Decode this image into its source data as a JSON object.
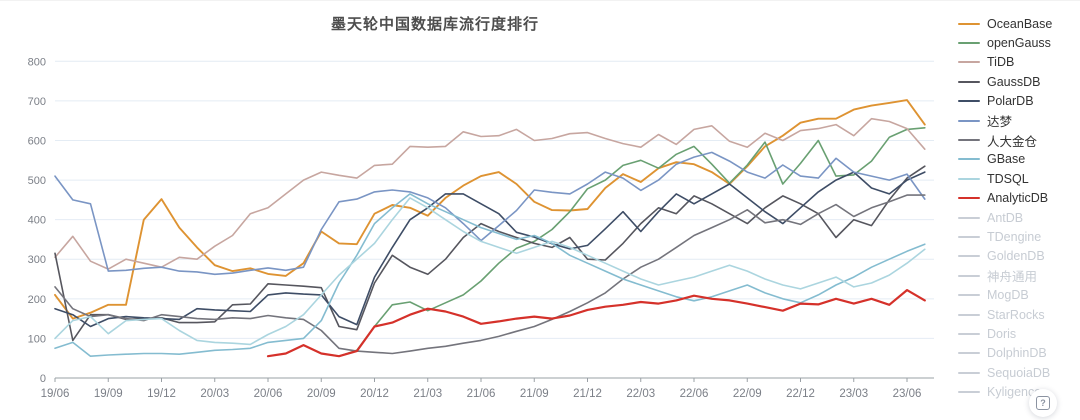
{
  "chart_data": {
    "type": "line",
    "title": "墨天轮中国数据库流行度排行",
    "xlabel": "",
    "ylabel": "",
    "ylim": [
      0,
      800
    ],
    "y_ticks": [
      0,
      100,
      200,
      300,
      400,
      500,
      600,
      700,
      800
    ],
    "grid": true,
    "legend_position": "right",
    "x_tick_labels": [
      "19/06",
      "19/09",
      "19/12",
      "20/03",
      "20/06",
      "20/09",
      "20/12",
      "21/03",
      "21/06",
      "21/09",
      "21/12",
      "22/03",
      "22/06",
      "22/09",
      "22/12",
      "23/03",
      "23/06"
    ],
    "x": [
      "19/06",
      "19/07",
      "19/08",
      "19/09",
      "19/10",
      "19/11",
      "19/12",
      "20/01",
      "20/02",
      "20/03",
      "20/04",
      "20/05",
      "20/06",
      "20/07",
      "20/08",
      "20/09",
      "20/10",
      "20/11",
      "20/12",
      "21/01",
      "21/02",
      "21/03",
      "21/04",
      "21/05",
      "21/06",
      "21/07",
      "21/08",
      "21/09",
      "21/10",
      "21/11",
      "21/12",
      "22/01",
      "22/02",
      "22/03",
      "22/04",
      "22/05",
      "22/06",
      "22/07",
      "22/08",
      "22/09",
      "22/10",
      "22/11",
      "22/12",
      "23/01",
      "23/02",
      "23/03",
      "23/04",
      "23/05",
      "23/06",
      "23/07"
    ],
    "series": [
      {
        "name": "OceanBase",
        "color": "#de9332",
        "values": [
          210,
          150,
          165,
          185,
          185,
          400,
          452,
          380,
          330,
          285,
          270,
          277,
          263,
          258,
          290,
          370,
          340,
          338,
          415,
          437,
          430,
          410,
          455,
          486,
          510,
          520,
          490,
          445,
          424,
          423,
          427,
          480,
          515,
          495,
          530,
          545,
          540,
          520,
          490,
          535,
          585,
          612,
          645,
          655,
          655,
          678,
          688,
          695,
          702,
          640
        ]
      },
      {
        "name": "openGauss",
        "color": "#69a072",
        "values": [
          null,
          null,
          null,
          null,
          null,
          null,
          null,
          null,
          null,
          null,
          null,
          null,
          null,
          null,
          null,
          62,
          55,
          70,
          130,
          185,
          192,
          170,
          190,
          210,
          245,
          290,
          328,
          345,
          375,
          420,
          478,
          500,
          537,
          550,
          530,
          565,
          585,
          540,
          492,
          538,
          596,
          490,
          542,
          600,
          510,
          513,
          548,
          608,
          628,
          632
        ]
      },
      {
        "name": "TiDB",
        "color": "#c7a6a0",
        "values": [
          305,
          358,
          295,
          275,
          300,
          290,
          280,
          305,
          300,
          333,
          360,
          415,
          430,
          465,
          500,
          520,
          512,
          505,
          537,
          540,
          585,
          583,
          585,
          622,
          610,
          612,
          628,
          600,
          605,
          617,
          620,
          605,
          592,
          583,
          615,
          590,
          628,
          637,
          598,
          583,
          618,
          600,
          625,
          630,
          640,
          612,
          655,
          648,
          630,
          578
        ]
      },
      {
        "name": "GaussDB",
        "color": "#56565e",
        "values": [
          315,
          95,
          160,
          160,
          148,
          150,
          152,
          140,
          140,
          142,
          185,
          187,
          238,
          235,
          232,
          228,
          130,
          122,
          240,
          310,
          280,
          262,
          300,
          355,
          390,
          370,
          355,
          340,
          330,
          355,
          300,
          298,
          340,
          390,
          430,
          415,
          460,
          440,
          415,
          390,
          430,
          460,
          440,
          415,
          355,
          400,
          385,
          450,
          505,
          535
        ]
      },
      {
        "name": "PolarDB",
        "color": "#3e4d66",
        "values": [
          175,
          160,
          130,
          150,
          155,
          152,
          150,
          148,
          175,
          172,
          170,
          168,
          210,
          215,
          212,
          210,
          155,
          135,
          255,
          330,
          400,
          430,
          465,
          465,
          440,
          415,
          368,
          356,
          339,
          326,
          335,
          377,
          420,
          370,
          420,
          465,
          440,
          465,
          490,
          455,
          420,
          390,
          430,
          470,
          500,
          520,
          480,
          465,
          500,
          520
        ]
      },
      {
        "name": "达梦",
        "color": "#7a95c4",
        "values": [
          510,
          450,
          440,
          270,
          272,
          277,
          280,
          270,
          268,
          262,
          265,
          272,
          278,
          272,
          280,
          375,
          445,
          452,
          470,
          475,
          470,
          455,
          430,
          390,
          347,
          385,
          423,
          475,
          469,
          465,
          490,
          520,
          505,
          474,
          500,
          540,
          558,
          570,
          548,
          520,
          505,
          538,
          510,
          505,
          555,
          520,
          510,
          500,
          515,
          452
        ]
      },
      {
        "name": "人大金仓",
        "color": "#74747c",
        "values": [
          230,
          175,
          155,
          160,
          150,
          145,
          160,
          155,
          150,
          148,
          152,
          150,
          158,
          152,
          148,
          120,
          75,
          68,
          65,
          62,
          68,
          75,
          80,
          88,
          95,
          105,
          118,
          130,
          148,
          168,
          190,
          215,
          250,
          280,
          300,
          330,
          360,
          380,
          400,
          425,
          392,
          400,
          388,
          415,
          438,
          408,
          430,
          445,
          462,
          462
        ]
      },
      {
        "name": "GBase",
        "color": "#84bcd0",
        "values": [
          75,
          90,
          55,
          58,
          60,
          62,
          62,
          60,
          65,
          70,
          72,
          75,
          90,
          95,
          100,
          145,
          240,
          310,
          390,
          430,
          465,
          440,
          420,
          400,
          380,
          365,
          350,
          360,
          340,
          310,
          290,
          270,
          250,
          235,
          220,
          205,
          195,
          205,
          220,
          235,
          215,
          200,
          190,
          210,
          235,
          255,
          280,
          300,
          320,
          338
        ]
      },
      {
        "name": "TDSQL",
        "color": "#abd5df",
        "values": [
          100,
          145,
          155,
          112,
          145,
          148,
          150,
          120,
          95,
          90,
          88,
          85,
          110,
          130,
          160,
          210,
          260,
          300,
          340,
          400,
          455,
          430,
          400,
          370,
          345,
          330,
          315,
          330,
          345,
          330,
          310,
          290,
          270,
          250,
          235,
          245,
          255,
          270,
          285,
          270,
          250,
          235,
          225,
          240,
          255,
          230,
          240,
          260,
          290,
          325
        ]
      },
      {
        "name": "AnalyticDB",
        "color": "#d5312a",
        "values": [
          null,
          null,
          null,
          null,
          null,
          null,
          null,
          null,
          null,
          null,
          null,
          null,
          55,
          62,
          83,
          62,
          55,
          68,
          130,
          140,
          160,
          175,
          168,
          155,
          137,
          143,
          150,
          155,
          150,
          158,
          172,
          180,
          185,
          192,
          188,
          196,
          208,
          200,
          196,
          188,
          179,
          170,
          188,
          186,
          200,
          188,
          200,
          185,
          222,
          196
        ]
      }
    ],
    "disabled_series": [
      {
        "name": "AntDB"
      },
      {
        "name": "TDengine"
      },
      {
        "name": "GoldenDB"
      },
      {
        "name": "神舟通用"
      },
      {
        "name": "MogDB"
      },
      {
        "name": "StarRocks"
      },
      {
        "name": "Doris"
      },
      {
        "name": "DolphinDB"
      },
      {
        "name": "SequoiaDB"
      },
      {
        "name": "Kyligence"
      }
    ],
    "disabled_color": "#c9ced6"
  },
  "help_button": {
    "glyph": "?"
  }
}
